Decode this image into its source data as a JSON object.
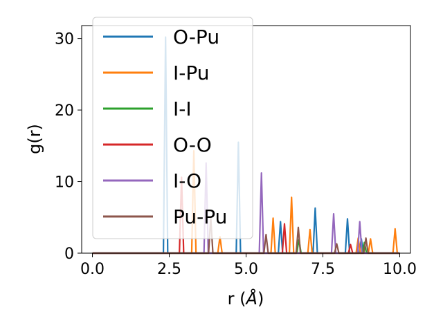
{
  "chart_data": {
    "type": "line",
    "xlabel_main": "r (",
    "xlabel_unit": "Å",
    "xlabel_end": ")",
    "ylabel": "g(r)",
    "xlim": [
      -0.35,
      10.35
    ],
    "ylim": [
      0,
      31.8
    ],
    "xticks": [
      0.0,
      2.5,
      5.0,
      7.5,
      10.0
    ],
    "xtick_labels": [
      "0.0",
      "2.5",
      "5.0",
      "7.5",
      "10.0"
    ],
    "yticks": [
      0,
      10,
      20,
      30
    ],
    "ytick_labels": [
      "0",
      "10",
      "20",
      "30"
    ],
    "grid": false,
    "legend_position": "upper-left",
    "series": [
      {
        "name": "O-Pu",
        "color": "#1f77b4",
        "peaks": [
          [
            2.38,
            30.2
          ],
          [
            4.75,
            15.5
          ],
          [
            6.12,
            4.4
          ],
          [
            7.25,
            6.3
          ],
          [
            8.3,
            4.8
          ],
          [
            8.75,
            2.0
          ]
        ]
      },
      {
        "name": "I-Pu",
        "color": "#ff7f0e",
        "peaks": [
          [
            3.3,
            14.3
          ],
          [
            4.15,
            2.3
          ],
          [
            5.88,
            4.9
          ],
          [
            6.48,
            7.8
          ],
          [
            7.08,
            3.3
          ],
          [
            8.65,
            2.1
          ],
          [
            9.05,
            2.0
          ],
          [
            9.85,
            3.4
          ]
        ]
      },
      {
        "name": "I-I",
        "color": "#2ca02c",
        "peaks": [
          [
            6.72,
            1.9
          ],
          [
            8.85,
            1.5
          ]
        ]
      },
      {
        "name": "O-O",
        "color": "#d62728",
        "peaks": [
          [
            2.9,
            10.6
          ],
          [
            6.25,
            4.1
          ],
          [
            8.4,
            1.2
          ]
        ]
      },
      {
        "name": "I-O",
        "color": "#9467bd",
        "peaks": [
          [
            3.7,
            12.6
          ],
          [
            5.5,
            11.2
          ],
          [
            7.85,
            5.5
          ],
          [
            8.7,
            4.4
          ]
        ]
      },
      {
        "name": "Pu-Pu",
        "color": "#8c564b",
        "peaks": [
          [
            3.85,
            5.0
          ],
          [
            5.65,
            2.6
          ],
          [
            6.7,
            3.6
          ],
          [
            7.95,
            1.3
          ],
          [
            8.9,
            2.1
          ]
        ]
      }
    ]
  }
}
